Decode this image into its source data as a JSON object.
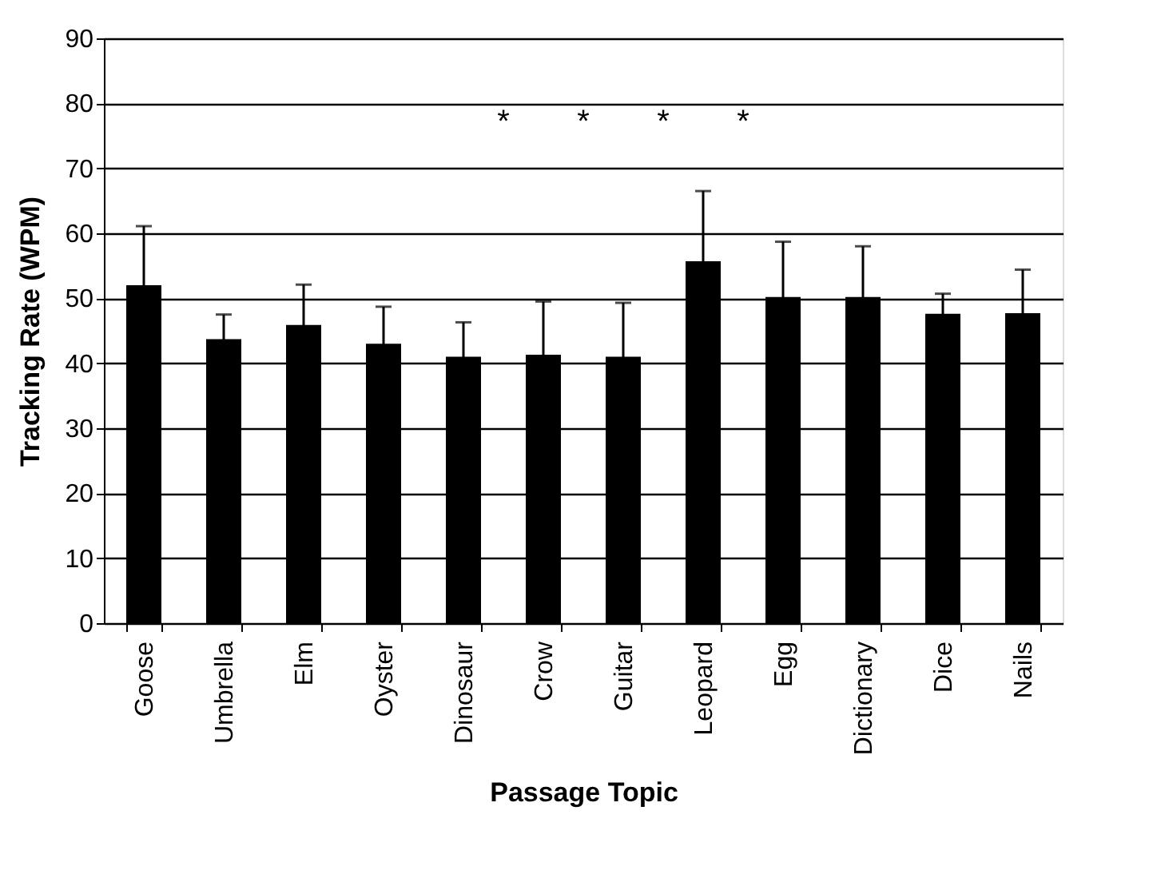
{
  "chart_data": {
    "type": "bar",
    "xlabel": "Passage Topic",
    "ylabel": "Tracking Rate (WPM)",
    "categories": [
      "Goose",
      "Umbrella",
      "Elm",
      "Oyster",
      "Dinosaur",
      "Crow",
      "Guitar",
      "Leopard",
      "Egg",
      "Dictionary",
      "Dice",
      "Nails"
    ],
    "values": [
      52.0,
      43.7,
      45.9,
      43.0,
      41.0,
      41.3,
      41.0,
      55.7,
      50.2,
      50.2,
      47.6,
      47.7
    ],
    "errors": [
      9.1,
      3.8,
      6.2,
      5.7,
      5.3,
      8.2,
      8.3,
      10.8,
      8.5,
      7.8,
      3.1,
      6.7
    ],
    "color": "#000000",
    "ylim": [
      0,
      90
    ],
    "yticks": [
      0,
      10,
      20,
      30,
      40,
      50,
      60,
      70,
      80,
      90
    ],
    "grid": "y",
    "annotations": [
      "*",
      "*",
      "*",
      "*"
    ]
  }
}
